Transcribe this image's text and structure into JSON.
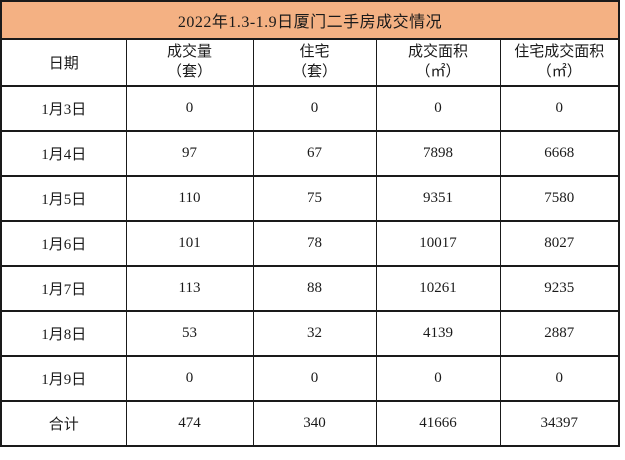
{
  "title": "2022年1.3-1.9日厦门二手房成交情况",
  "colors": {
    "title_bg": "#F4B183",
    "border": "#1A1A1A",
    "cell_bg": "#FFFFFF",
    "text": "#1A1A1A"
  },
  "header": {
    "date": "日期",
    "volume": [
      "成交量",
      "（套）"
    ],
    "residential": [
      "住宅",
      "（套）"
    ],
    "area": [
      "成交面积",
      "（㎡）"
    ],
    "residential_area": [
      "住宅成交面积",
      "（㎡）"
    ]
  },
  "chart_data": {
    "type": "table",
    "title": "2022年1.3-1.9日厦门二手房成交情况",
    "columns": [
      "日期",
      "成交量（套）",
      "住宅（套）",
      "成交面积（㎡）",
      "住宅成交面积（㎡）"
    ],
    "rows": [
      [
        "1月3日",
        0,
        0,
        0,
        0
      ],
      [
        "1月4日",
        97,
        67,
        7898,
        6668
      ],
      [
        "1月5日",
        110,
        75,
        9351,
        7580
      ],
      [
        "1月6日",
        101,
        78,
        10017,
        8027
      ],
      [
        "1月7日",
        113,
        88,
        10261,
        9235
      ],
      [
        "1月8日",
        53,
        32,
        4139,
        2887
      ],
      [
        "1月9日",
        0,
        0,
        0,
        0
      ],
      [
        "合计",
        474,
        340,
        41666,
        34397
      ]
    ]
  }
}
